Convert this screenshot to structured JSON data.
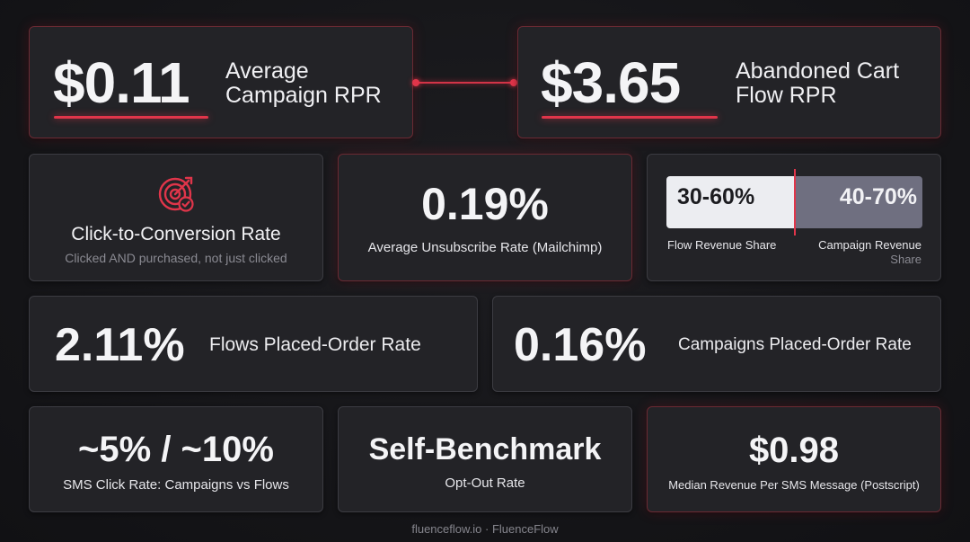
{
  "top": {
    "campaign": {
      "value": "$0.11",
      "label_line1": "Average",
      "label_line2": "Campaign RPR"
    },
    "cart": {
      "value": "$3.65",
      "label_line1": "Abandoned Cart",
      "label_line2": "Flow RPR"
    }
  },
  "row2": {
    "ctc": {
      "icon": "target-icon",
      "title": "Click-to-Conversion Rate",
      "subtitle": "Clicked AND purchased, not just clicked"
    },
    "unsub": {
      "value": "0.19%",
      "label": "Average Unsubscribe Rate (Mailchimp)"
    },
    "share": {
      "flow_value": "30-60%",
      "campaign_value": "40-70%",
      "flow_label": "Flow Revenue Share",
      "campaign_label_line1": "Campaign Revenue",
      "campaign_label_line2": "Share"
    }
  },
  "row3": {
    "flows": {
      "value": "2.11%",
      "label": "Flows Placed-Order Rate"
    },
    "campaigns": {
      "value": "0.16%",
      "label": "Campaigns Placed-Order Rate"
    }
  },
  "row4": {
    "sms": {
      "value": "~5% / ~10%",
      "label": "SMS Click Rate: Campaigns vs Flows"
    },
    "bench": {
      "value": "Self-Benchmark",
      "label": "Opt-Out Rate"
    },
    "median": {
      "value": "$0.98",
      "label": "Median Revenue Per SMS Message (Postscript)"
    }
  },
  "footer": {
    "text": "fluenceflow.io · FluenceFlow"
  },
  "colors": {
    "accent": "#e0354a",
    "card": "#232327",
    "background": "#151518"
  }
}
